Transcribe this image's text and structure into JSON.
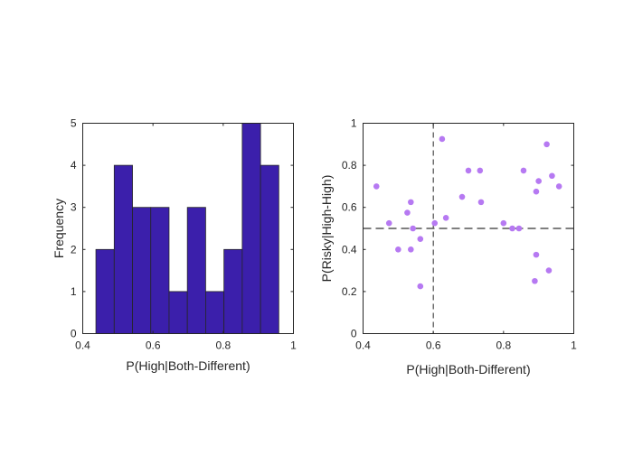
{
  "chart_data": [
    {
      "type": "bar",
      "subtype": "histogram",
      "xlabel": "P(High|Both-Different)",
      "ylabel": "Frequency",
      "xlim": [
        0.4,
        1
      ],
      "ylim": [
        0,
        5
      ],
      "xticks": [
        "0.4",
        "0.6",
        "0.8",
        "1"
      ],
      "xtick_values": [
        0.4,
        0.6,
        0.8,
        1
      ],
      "yticks": [
        "0",
        "1",
        "2",
        "3",
        "4",
        "5"
      ],
      "ytick_values": [
        0,
        1,
        2,
        3,
        4,
        5
      ],
      "bin_edges": [
        0.4375,
        0.4896,
        0.5417,
        0.5938,
        0.6458,
        0.6979,
        0.75,
        0.8021,
        0.8542,
        0.9063,
        0.9583
      ],
      "values": [
        2,
        4,
        3,
        3,
        1,
        3,
        1,
        2,
        5,
        4
      ],
      "bar_color": "#3B1FAB",
      "edge_color": "#262626",
      "box": true
    },
    {
      "type": "scatter",
      "xlabel": "P(High|Both-Different)",
      "ylabel": "P(Risky|High-High)",
      "xlim": [
        0.4,
        1
      ],
      "ylim": [
        0,
        1
      ],
      "xticks": [
        "0.4",
        "0.6",
        "0.8",
        "1"
      ],
      "xtick_values": [
        0.4,
        0.6,
        0.8,
        1
      ],
      "yticks": [
        "0",
        "0.2",
        "0.4",
        "0.6",
        "0.8",
        "1"
      ],
      "ytick_values": [
        0,
        0.2,
        0.4,
        0.6,
        0.8,
        1
      ],
      "points": [
        {
          "x": 0.438,
          "y": 0.7
        },
        {
          "x": 0.474,
          "y": 0.525
        },
        {
          "x": 0.5,
          "y": 0.4
        },
        {
          "x": 0.526,
          "y": 0.575
        },
        {
          "x": 0.536,
          "y": 0.625
        },
        {
          "x": 0.536,
          "y": 0.4
        },
        {
          "x": 0.542,
          "y": 0.5
        },
        {
          "x": 0.563,
          "y": 0.45
        },
        {
          "x": 0.563,
          "y": 0.225
        },
        {
          "x": 0.604,
          "y": 0.525
        },
        {
          "x": 0.625,
          "y": 0.925
        },
        {
          "x": 0.636,
          "y": 0.55
        },
        {
          "x": 0.682,
          "y": 0.65
        },
        {
          "x": 0.7,
          "y": 0.775
        },
        {
          "x": 0.733,
          "y": 0.775
        },
        {
          "x": 0.736,
          "y": 0.625
        },
        {
          "x": 0.8,
          "y": 0.525
        },
        {
          "x": 0.825,
          "y": 0.5
        },
        {
          "x": 0.844,
          "y": 0.5
        },
        {
          "x": 0.857,
          "y": 0.775
        },
        {
          "x": 0.889,
          "y": 0.25
        },
        {
          "x": 0.893,
          "y": 0.375
        },
        {
          "x": 0.893,
          "y": 0.675
        },
        {
          "x": 0.9,
          "y": 0.725
        },
        {
          "x": 0.923,
          "y": 0.9
        },
        {
          "x": 0.929,
          "y": 0.3
        },
        {
          "x": 0.938,
          "y": 0.75
        },
        {
          "x": 0.958,
          "y": 0.7
        }
      ],
      "reference_lines": [
        {
          "orientation": "vertical",
          "value": 0.6,
          "style": "dashed"
        },
        {
          "orientation": "horizontal",
          "value": 0.5,
          "style": "dashed"
        }
      ],
      "marker_color": "#B679F2",
      "box": true
    }
  ]
}
